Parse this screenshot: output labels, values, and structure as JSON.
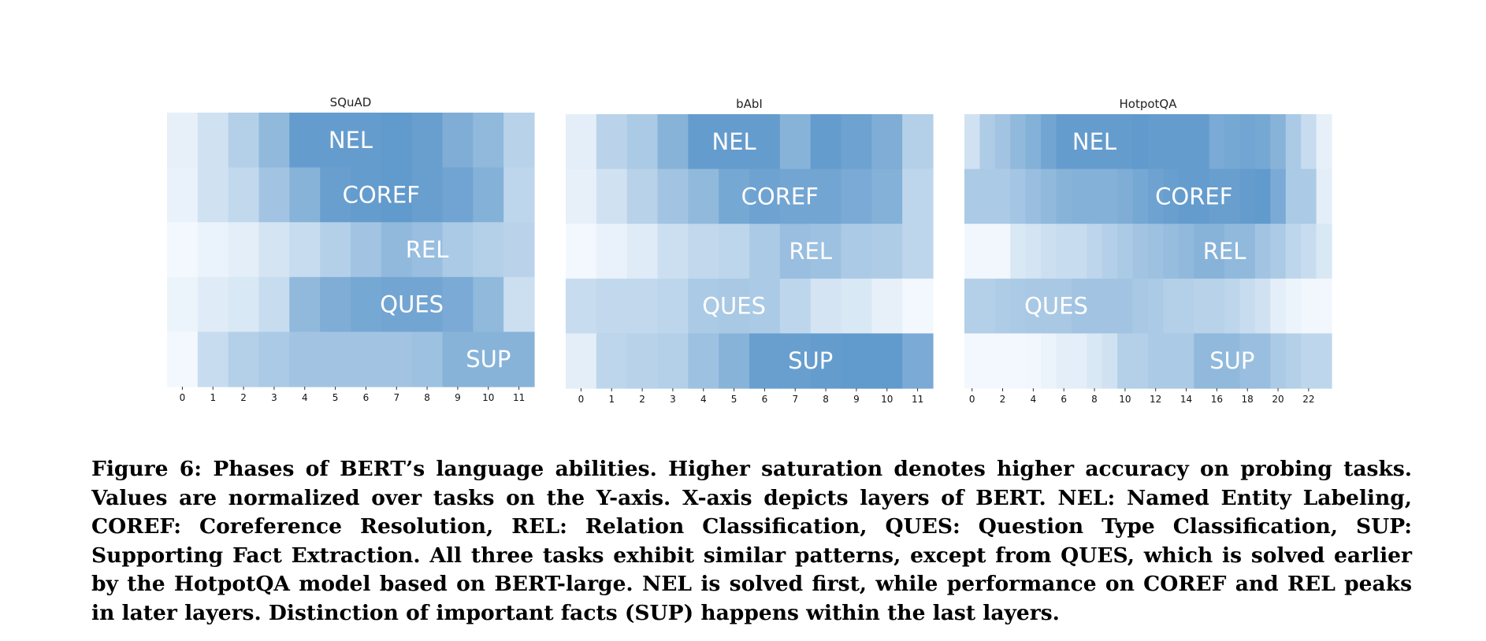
{
  "chart_data": [
    {
      "type": "heatmap",
      "title": "SQuAD",
      "x": [
        0,
        1,
        2,
        3,
        4,
        5,
        6,
        7,
        8,
        9,
        10,
        11
      ],
      "x_tick_labels": [
        "0",
        "1",
        "2",
        "3",
        "4",
        "5",
        "6",
        "7",
        "8",
        "9",
        "10",
        "11"
      ],
      "rows": [
        "NEL",
        "COREF",
        "REL",
        "QUES",
        "SUP"
      ],
      "values": [
        [
          0.08,
          0.2,
          0.35,
          0.55,
          0.8,
          0.8,
          0.8,
          0.82,
          0.78,
          0.65,
          0.55,
          0.33
        ],
        [
          0.07,
          0.2,
          0.28,
          0.45,
          0.6,
          0.78,
          0.8,
          0.82,
          0.78,
          0.73,
          0.62,
          0.3
        ],
        [
          0.02,
          0.06,
          0.1,
          0.18,
          0.25,
          0.35,
          0.45,
          0.55,
          0.5,
          0.4,
          0.35,
          0.32
        ],
        [
          0.05,
          0.12,
          0.15,
          0.25,
          0.55,
          0.65,
          0.7,
          0.72,
          0.72,
          0.68,
          0.55,
          0.22
        ],
        [
          0.02,
          0.25,
          0.35,
          0.4,
          0.45,
          0.45,
          0.45,
          0.45,
          0.48,
          0.6,
          0.6,
          0.6
        ]
      ],
      "band_label_col": [
        5.5,
        6.5,
        8.0,
        7.5,
        10.0
      ],
      "colormap": "Blues"
    },
    {
      "type": "heatmap",
      "title": "bAbI",
      "x": [
        0,
        1,
        2,
        3,
        4,
        5,
        6,
        7,
        8,
        9,
        10,
        11
      ],
      "x_tick_labels": [
        "0",
        "1",
        "2",
        "3",
        "4",
        "5",
        "6",
        "7",
        "8",
        "9",
        "10",
        "11"
      ],
      "rows": [
        "NEL",
        "COREF",
        "REL",
        "QUES",
        "SUP"
      ],
      "values": [
        [
          0.1,
          0.32,
          0.4,
          0.6,
          0.8,
          0.8,
          0.8,
          0.6,
          0.8,
          0.75,
          0.65,
          0.35
        ],
        [
          0.08,
          0.2,
          0.33,
          0.45,
          0.55,
          0.7,
          0.75,
          0.72,
          0.72,
          0.68,
          0.62,
          0.3
        ],
        [
          0.02,
          0.07,
          0.12,
          0.22,
          0.28,
          0.3,
          0.4,
          0.5,
          0.48,
          0.4,
          0.38,
          0.3
        ],
        [
          0.25,
          0.28,
          0.28,
          0.3,
          0.4,
          0.42,
          0.4,
          0.3,
          0.18,
          0.15,
          0.08,
          0.02
        ],
        [
          0.1,
          0.3,
          0.33,
          0.35,
          0.48,
          0.6,
          0.78,
          0.78,
          0.8,
          0.82,
          0.82,
          0.68
        ]
      ],
      "band_label_col": [
        5.0,
        6.5,
        7.5,
        5.0,
        7.5
      ],
      "colormap": "Blues"
    },
    {
      "type": "heatmap",
      "title": "HotpotQA",
      "x": [
        0,
        1,
        2,
        3,
        4,
        5,
        6,
        7,
        8,
        9,
        10,
        11,
        12,
        13,
        14,
        15,
        16,
        17,
        18,
        19,
        20,
        21,
        22,
        23
      ],
      "x_tick_labels": [
        "0",
        "2",
        "4",
        "6",
        "8",
        "10",
        "12",
        "14",
        "16",
        "18",
        "20",
        "22"
      ],
      "rows": [
        "NEL",
        "COREF",
        "REL",
        "QUES",
        "SUP"
      ],
      "values": [
        [
          0.2,
          0.38,
          0.45,
          0.55,
          0.62,
          0.72,
          0.8,
          0.8,
          0.8,
          0.8,
          0.8,
          0.82,
          0.8,
          0.8,
          0.8,
          0.8,
          0.68,
          0.7,
          0.72,
          0.7,
          0.6,
          0.4,
          0.25,
          0.08
        ],
        [
          0.4,
          0.4,
          0.4,
          0.44,
          0.5,
          0.55,
          0.6,
          0.62,
          0.62,
          0.62,
          0.65,
          0.7,
          0.75,
          0.78,
          0.8,
          0.8,
          0.78,
          0.78,
          0.8,
          0.82,
          0.68,
          0.4,
          0.4,
          0.1
        ],
        [
          0.03,
          0.03,
          0.03,
          0.15,
          0.18,
          0.22,
          0.25,
          0.25,
          0.3,
          0.35,
          0.4,
          0.45,
          0.48,
          0.52,
          0.55,
          0.6,
          0.6,
          0.55,
          0.55,
          0.45,
          0.4,
          0.3,
          0.25,
          0.15
        ],
        [
          0.35,
          0.35,
          0.38,
          0.4,
          0.42,
          0.42,
          0.42,
          0.45,
          0.45,
          0.45,
          0.45,
          0.42,
          0.4,
          0.35,
          0.35,
          0.33,
          0.33,
          0.3,
          0.25,
          0.2,
          0.1,
          0.05,
          0.03,
          0.03
        ],
        [
          0.02,
          0.02,
          0.02,
          0.02,
          0.03,
          0.05,
          0.1,
          0.1,
          0.15,
          0.2,
          0.35,
          0.35,
          0.4,
          0.4,
          0.4,
          0.55,
          0.55,
          0.55,
          0.5,
          0.5,
          0.4,
          0.35,
          0.3,
          0.3
        ]
      ],
      "band_label_col": [
        8.0,
        14.5,
        16.5,
        5.5,
        17.0
      ],
      "colormap": "Blues"
    }
  ],
  "caption": "Figure 6: Phases of BERT’s language abilities. Higher saturation denotes higher accuracy on probing tasks. Values are normalized over tasks on the Y-axis. X-axis depicts layers of BERT. NEL: Named Entity Labeling, COREF: Coreference Resolution, REL: Relation Classification, QUES: Question Type Classification, SUP: Supporting Fact Extraction. All three tasks exhibit similar patterns, except from QUES, which is solved earlier by the HotpotQA model based on BERT-large. NEL is solved first, while performance on COREF and REL peaks in later layers. Distinction of important facts (SUP) happens within the last layers."
}
